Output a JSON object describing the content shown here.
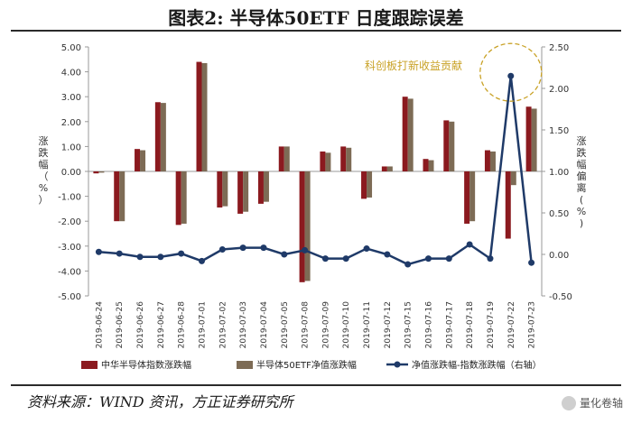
{
  "header": {
    "title": "图表2:   半导体50ETF 日度跟踪误差"
  },
  "footer": {
    "source": "资料来源：WIND 资讯，方正证券研究所",
    "watermark": "量化卷轴"
  },
  "colors": {
    "index": "#8b1a1f",
    "etf": "#7d6b55",
    "tracking": "#1f3a68",
    "annotation": "#c9a227"
  },
  "chart_data": {
    "type": "bar",
    "categories": [
      "2019-06-24",
      "2019-06-25",
      "2019-06-26",
      "2019-06-27",
      "2019-06-28",
      "2019-07-01",
      "2019-07-02",
      "2019-07-03",
      "2019-07-04",
      "2019-07-05",
      "2019-07-08",
      "2019-07-09",
      "2019-07-10",
      "2019-07-11",
      "2019-07-12",
      "2019-07-15",
      "2019-07-16",
      "2019-07-17",
      "2019-07-18",
      "2019-07-19",
      "2019-07-22",
      "2019-07-23"
    ],
    "series": [
      {
        "name": "中华半导体指数涨跌幅",
        "type": "bar",
        "axis": "left",
        "values": [
          -0.08,
          -2.0,
          0.9,
          2.78,
          -2.15,
          4.4,
          -1.45,
          -1.7,
          -1.3,
          1.0,
          -4.45,
          0.8,
          1.0,
          -1.1,
          0.2,
          3.0,
          0.5,
          2.05,
          -2.1,
          0.85,
          -2.7,
          2.6
        ]
      },
      {
        "name": "半导体50ETF净值涨跌幅",
        "type": "bar",
        "axis": "left",
        "values": [
          -0.05,
          -2.0,
          0.85,
          2.75,
          -2.1,
          4.35,
          -1.4,
          -1.62,
          -1.22,
          1.0,
          -4.4,
          0.75,
          0.95,
          -1.05,
          0.2,
          2.92,
          0.45,
          2.0,
          -2.0,
          0.8,
          -0.55,
          2.52
        ]
      },
      {
        "name": "净值涨跌幅-指数涨跌幅（右轴）",
        "type": "line",
        "axis": "right",
        "values": [
          0.03,
          0.01,
          -0.03,
          -0.03,
          0.01,
          -0.08,
          0.06,
          0.08,
          0.08,
          0.0,
          0.05,
          -0.05,
          -0.05,
          0.07,
          0.0,
          -0.12,
          -0.05,
          -0.05,
          0.12,
          -0.05,
          2.15,
          -0.1
        ]
      }
    ],
    "left_axis": {
      "label": "涨跌幅（%）",
      "ylim": [
        -5,
        5
      ],
      "ticks": [
        "5.00",
        "4.00",
        "3.00",
        "2.00",
        "1.00",
        "0.00",
        "-1.00",
        "-2.00",
        "-3.00",
        "-4.00",
        "-5.00"
      ]
    },
    "right_axis": {
      "label": "涨跌幅偏离(%)",
      "ylim": [
        -0.5,
        2.5
      ],
      "ticks": [
        "2.50",
        "2.00",
        "1.50",
        "1.00",
        "0.50",
        "0.00",
        "-0.50"
      ]
    },
    "annotation": "科创板打新收益贡献",
    "legend": [
      "中华半导体指数涨跌幅",
      "半导体50ETF净值涨跌幅",
      "净值涨跌幅-指数涨跌幅（右轴）"
    ],
    "grid": false,
    "legend_position": "bottom"
  }
}
